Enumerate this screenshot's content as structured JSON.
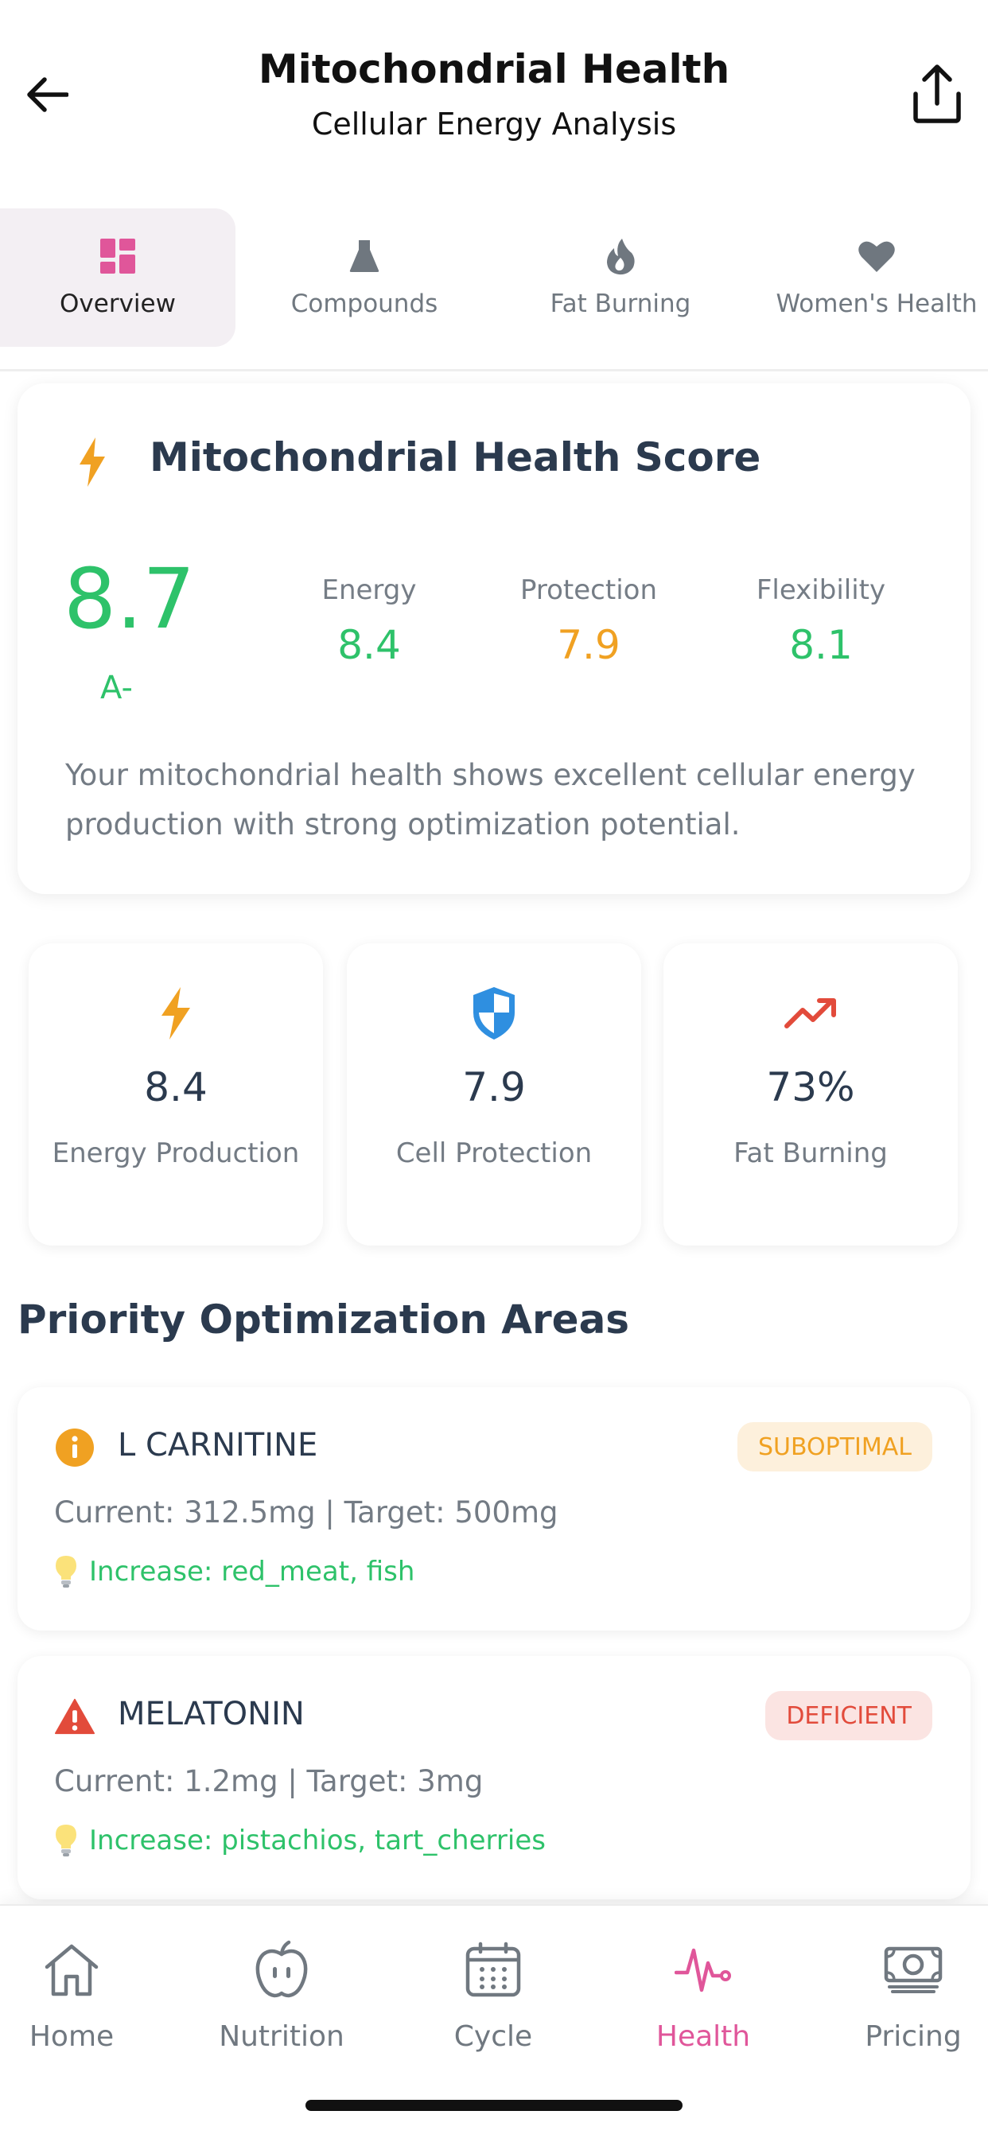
{
  "header": {
    "title": "Mitochondrial Health",
    "subtitle": "Cellular Energy Analysis"
  },
  "tabs": [
    {
      "label": "Overview",
      "icon": "grid-icon",
      "active": true
    },
    {
      "label": "Compounds",
      "icon": "flask-icon",
      "active": false
    },
    {
      "label": "Fat Burning",
      "icon": "flame-icon",
      "active": false
    },
    {
      "label": "Women's Health",
      "icon": "heart-icon",
      "active": false
    }
  ],
  "score_card": {
    "title": "Mitochondrial Health Score",
    "score": "8.7",
    "grade": "A-",
    "metrics": [
      {
        "label": "Energy",
        "value": "8.4",
        "color": "#2ec26a"
      },
      {
        "label": "Protection",
        "value": "7.9",
        "color": "#f0a122"
      },
      {
        "label": "Flexibility",
        "value": "8.1",
        "color": "#2ec26a"
      }
    ],
    "description": "Your mitochondrial health shows excellent cellular energy production with strong optimization potential."
  },
  "stats": [
    {
      "value": "8.4",
      "label": "Energy Production",
      "icon": "bolt-icon"
    },
    {
      "value": "7.9",
      "label": "Cell Protection",
      "icon": "shield-icon"
    },
    {
      "value": "73%",
      "label": "Fat Burning",
      "icon": "trending-up-icon"
    }
  ],
  "priority": {
    "title": "Priority Optimization Areas",
    "items": [
      {
        "name": "L CARNITINE",
        "status": "SUBOPTIMAL",
        "current": "Current: 312.5mg | Target: 500mg",
        "tip": "Increase: red_meat, fish",
        "icon": "info-icon"
      },
      {
        "name": "MELATONIN",
        "status": "DEFICIENT",
        "current": "Current: 1.2mg | Target: 3mg",
        "tip": "Increase: pistachios, tart_cherries",
        "icon": "warning-icon"
      }
    ]
  },
  "nav": [
    {
      "label": "Home",
      "icon": "home-icon"
    },
    {
      "label": "Nutrition",
      "icon": "apple-icon"
    },
    {
      "label": "Cycle",
      "icon": "calendar-icon"
    },
    {
      "label": "Health",
      "icon": "pulse-icon",
      "active": true
    },
    {
      "label": "Pricing",
      "icon": "money-icon"
    }
  ],
  "colors": {
    "green": "#2ec26a",
    "orange": "#f0a122",
    "red": "#e24b3b",
    "pink": "#e0569a",
    "blue": "#2f8fe0"
  }
}
